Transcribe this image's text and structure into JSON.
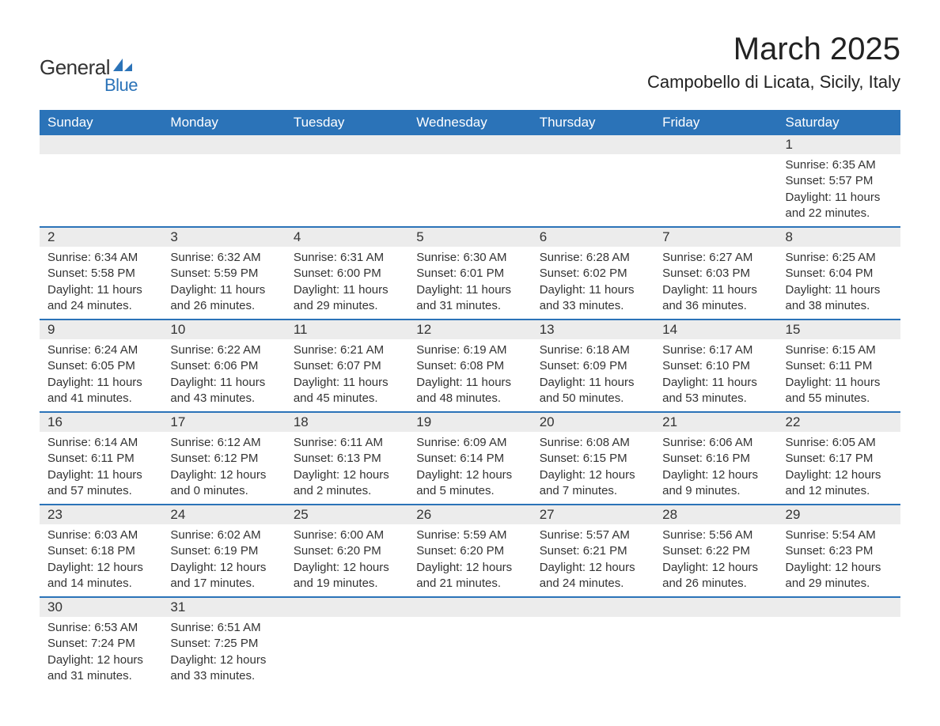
{
  "logo": {
    "text1": "General",
    "text2": "Blue",
    "icon_color": "#2b73b8"
  },
  "title": {
    "month": "March 2025",
    "location": "Campobello di Licata, Sicily, Italy"
  },
  "colors": {
    "header_bg": "#2b73b8",
    "header_text": "#ffffff",
    "row_divider": "#2b73b8",
    "daynum_bg": "#ececec",
    "body_text": "#333333",
    "page_bg": "#ffffff"
  },
  "weekdays": [
    "Sunday",
    "Monday",
    "Tuesday",
    "Wednesday",
    "Thursday",
    "Friday",
    "Saturday"
  ],
  "weeks": [
    [
      null,
      null,
      null,
      null,
      null,
      null,
      {
        "n": "1",
        "sr": "6:35 AM",
        "ss": "5:57 PM",
        "dl": "11 hours and 22 minutes."
      }
    ],
    [
      {
        "n": "2",
        "sr": "6:34 AM",
        "ss": "5:58 PM",
        "dl": "11 hours and 24 minutes."
      },
      {
        "n": "3",
        "sr": "6:32 AM",
        "ss": "5:59 PM",
        "dl": "11 hours and 26 minutes."
      },
      {
        "n": "4",
        "sr": "6:31 AM",
        "ss": "6:00 PM",
        "dl": "11 hours and 29 minutes."
      },
      {
        "n": "5",
        "sr": "6:30 AM",
        "ss": "6:01 PM",
        "dl": "11 hours and 31 minutes."
      },
      {
        "n": "6",
        "sr": "6:28 AM",
        "ss": "6:02 PM",
        "dl": "11 hours and 33 minutes."
      },
      {
        "n": "7",
        "sr": "6:27 AM",
        "ss": "6:03 PM",
        "dl": "11 hours and 36 minutes."
      },
      {
        "n": "8",
        "sr": "6:25 AM",
        "ss": "6:04 PM",
        "dl": "11 hours and 38 minutes."
      }
    ],
    [
      {
        "n": "9",
        "sr": "6:24 AM",
        "ss": "6:05 PM",
        "dl": "11 hours and 41 minutes."
      },
      {
        "n": "10",
        "sr": "6:22 AM",
        "ss": "6:06 PM",
        "dl": "11 hours and 43 minutes."
      },
      {
        "n": "11",
        "sr": "6:21 AM",
        "ss": "6:07 PM",
        "dl": "11 hours and 45 minutes."
      },
      {
        "n": "12",
        "sr": "6:19 AM",
        "ss": "6:08 PM",
        "dl": "11 hours and 48 minutes."
      },
      {
        "n": "13",
        "sr": "6:18 AM",
        "ss": "6:09 PM",
        "dl": "11 hours and 50 minutes."
      },
      {
        "n": "14",
        "sr": "6:17 AM",
        "ss": "6:10 PM",
        "dl": "11 hours and 53 minutes."
      },
      {
        "n": "15",
        "sr": "6:15 AM",
        "ss": "6:11 PM",
        "dl": "11 hours and 55 minutes."
      }
    ],
    [
      {
        "n": "16",
        "sr": "6:14 AM",
        "ss": "6:11 PM",
        "dl": "11 hours and 57 minutes."
      },
      {
        "n": "17",
        "sr": "6:12 AM",
        "ss": "6:12 PM",
        "dl": "12 hours and 0 minutes."
      },
      {
        "n": "18",
        "sr": "6:11 AM",
        "ss": "6:13 PM",
        "dl": "12 hours and 2 minutes."
      },
      {
        "n": "19",
        "sr": "6:09 AM",
        "ss": "6:14 PM",
        "dl": "12 hours and 5 minutes."
      },
      {
        "n": "20",
        "sr": "6:08 AM",
        "ss": "6:15 PM",
        "dl": "12 hours and 7 minutes."
      },
      {
        "n": "21",
        "sr": "6:06 AM",
        "ss": "6:16 PM",
        "dl": "12 hours and 9 minutes."
      },
      {
        "n": "22",
        "sr": "6:05 AM",
        "ss": "6:17 PM",
        "dl": "12 hours and 12 minutes."
      }
    ],
    [
      {
        "n": "23",
        "sr": "6:03 AM",
        "ss": "6:18 PM",
        "dl": "12 hours and 14 minutes."
      },
      {
        "n": "24",
        "sr": "6:02 AM",
        "ss": "6:19 PM",
        "dl": "12 hours and 17 minutes."
      },
      {
        "n": "25",
        "sr": "6:00 AM",
        "ss": "6:20 PM",
        "dl": "12 hours and 19 minutes."
      },
      {
        "n": "26",
        "sr": "5:59 AM",
        "ss": "6:20 PM",
        "dl": "12 hours and 21 minutes."
      },
      {
        "n": "27",
        "sr": "5:57 AM",
        "ss": "6:21 PM",
        "dl": "12 hours and 24 minutes."
      },
      {
        "n": "28",
        "sr": "5:56 AM",
        "ss": "6:22 PM",
        "dl": "12 hours and 26 minutes."
      },
      {
        "n": "29",
        "sr": "5:54 AM",
        "ss": "6:23 PM",
        "dl": "12 hours and 29 minutes."
      }
    ],
    [
      {
        "n": "30",
        "sr": "6:53 AM",
        "ss": "7:24 PM",
        "dl": "12 hours and 31 minutes."
      },
      {
        "n": "31",
        "sr": "6:51 AM",
        "ss": "7:25 PM",
        "dl": "12 hours and 33 minutes."
      },
      null,
      null,
      null,
      null,
      null
    ]
  ],
  "labels": {
    "sunrise": "Sunrise: ",
    "sunset": "Sunset: ",
    "daylight": "Daylight: "
  }
}
